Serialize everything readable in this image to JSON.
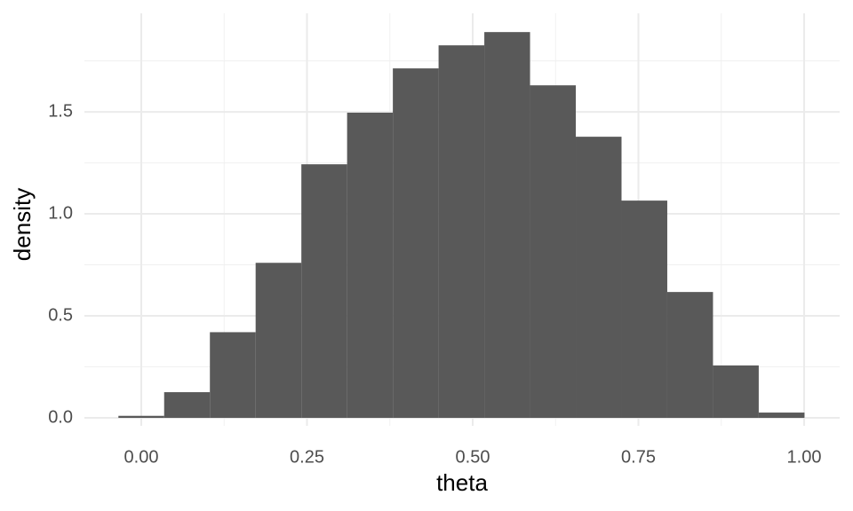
{
  "chart_data": {
    "type": "histogram",
    "x_label": "theta",
    "y_label": "density",
    "bins": [
      -0.0345,
      0.0345,
      0.1035,
      0.1725,
      0.2415,
      0.3105,
      0.3795,
      0.4485,
      0.5175,
      0.5865,
      0.6555,
      0.7245,
      0.7935,
      0.8625,
      0.9315,
      1.0005
    ],
    "values": [
      0.01,
      0.126,
      0.42,
      0.76,
      1.243,
      1.496,
      1.713,
      1.826,
      1.891,
      1.63,
      1.378,
      1.065,
      0.617,
      0.257,
      0.026
    ],
    "color": "#595959",
    "xlim": [
      -0.0858,
      1.0536
    ],
    "ylim": [
      -0.039,
      1.983
    ],
    "xticks": [
      {
        "value": 0,
        "label": "0.00"
      },
      {
        "value": 0.25,
        "label": "0.25"
      },
      {
        "value": 0.5,
        "label": "0.50"
      },
      {
        "value": 0.75,
        "label": "0.75"
      },
      {
        "value": 1,
        "label": "1.00"
      }
    ],
    "yticks": [
      {
        "value": 0,
        "label": "0.0"
      },
      0.5,
      {
        "value": 1,
        "label": "1.0"
      },
      1.5
    ],
    "grid": true,
    "minor_grid": true
  }
}
